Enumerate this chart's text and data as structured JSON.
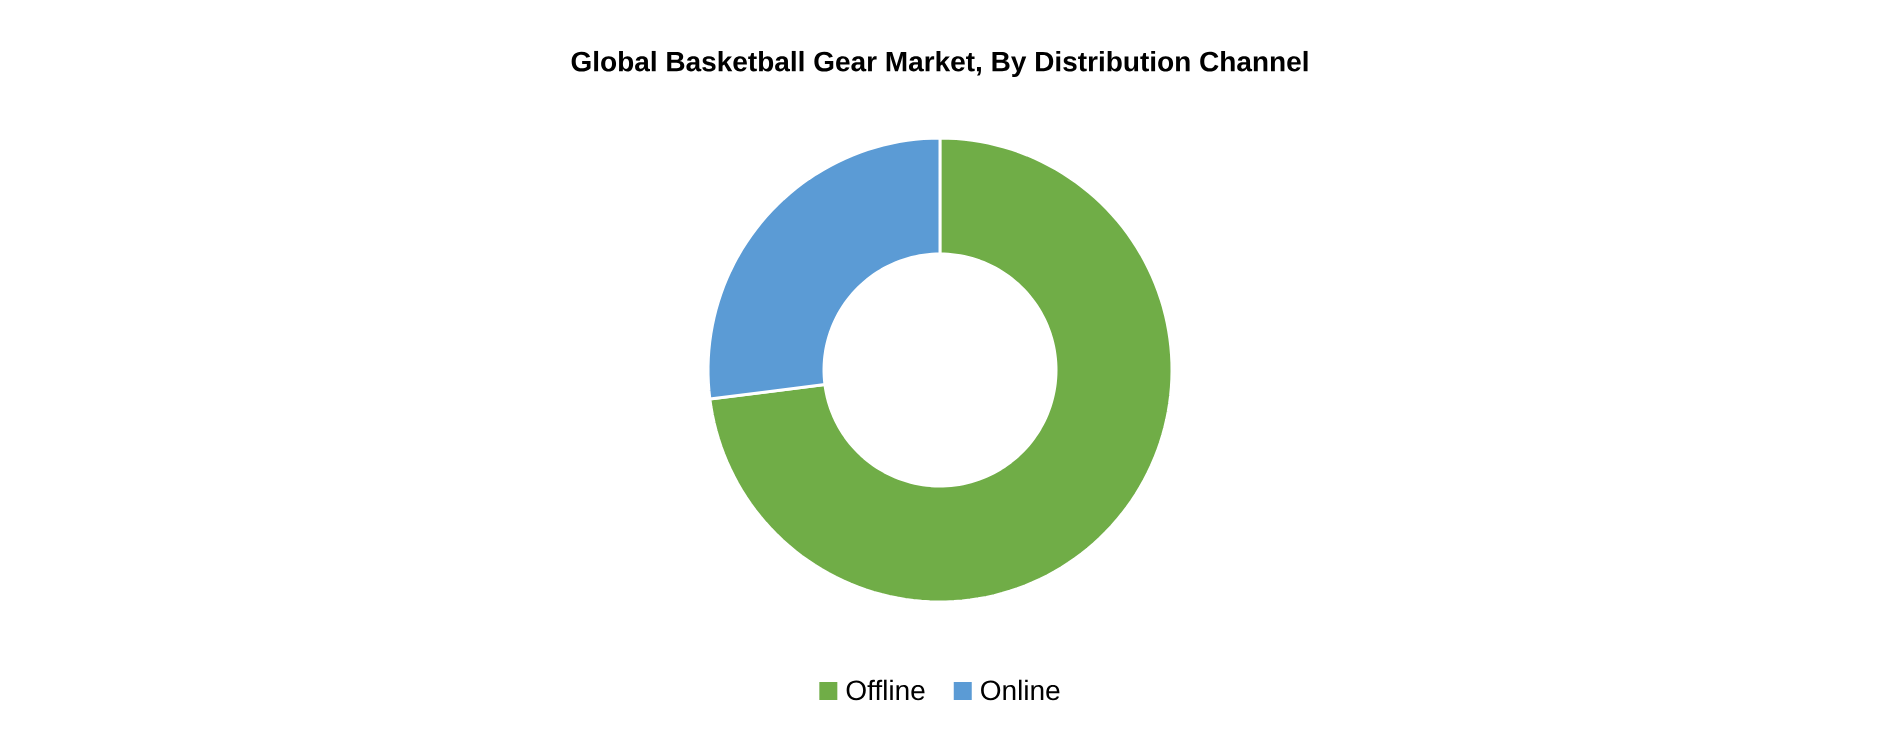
{
  "chart_data": {
    "type": "donut",
    "title": "Global Basketball Gear Market, By Distribution Channel",
    "categories": [
      "Offline",
      "Online"
    ],
    "values": [
      73,
      27
    ],
    "colors": [
      "#70ad47",
      "#5b9bd5"
    ],
    "legend": "bottom"
  }
}
